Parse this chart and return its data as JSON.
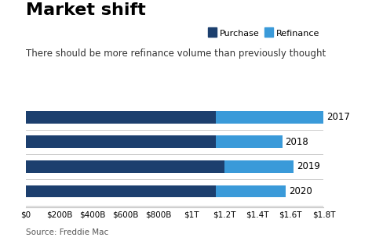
{
  "title": "Market shift",
  "subtitle": "There should be more refinance volume than previously thought",
  "source": "Source: Freddie Mac",
  "years": [
    "2017",
    "2018",
    "2019",
    "2020"
  ],
  "purchase": [
    1150,
    1150,
    1200,
    1150
  ],
  "refinance": [
    650,
    400,
    420,
    420
  ],
  "purchase_color": "#1c3f6e",
  "refinance_color": "#3a9ad9",
  "background_color": "#ffffff",
  "xlim": [
    0,
    1800
  ],
  "xticks": [
    0,
    200,
    400,
    600,
    800,
    1000,
    1200,
    1400,
    1600,
    1800
  ],
  "xtick_labels": [
    "$0",
    "$200B",
    "$400B",
    "$600B",
    "$800B",
    "$1T",
    "$1.2T",
    "$1.4T",
    "$1.6T",
    "$1.8T"
  ],
  "bar_height": 0.5,
  "legend_purchase": "Purchase",
  "legend_refinance": "Refinance",
  "title_fontsize": 16,
  "subtitle_fontsize": 8.5,
  "tick_fontsize": 7.5,
  "year_fontsize": 8.5,
  "source_fontsize": 7.5
}
